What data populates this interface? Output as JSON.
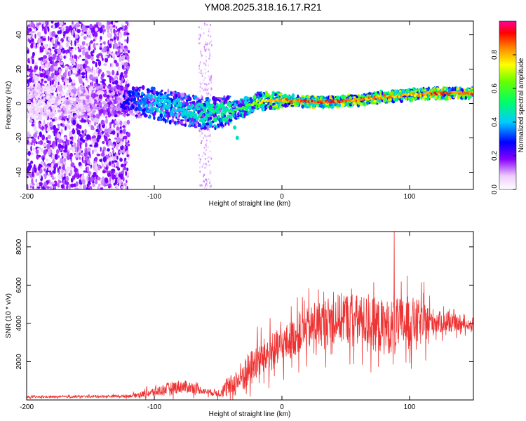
{
  "title": "YM08.2025.318.16.17.R21",
  "chart_data": [
    {
      "type": "heatmap",
      "name": "spectrogram",
      "xlabel": "Height of straight line (km)",
      "ylabel": "Frequency (Hz)",
      "xlim": [
        -200,
        150
      ],
      "ylim": [
        -50,
        48
      ],
      "x_ticks": [
        -200,
        -100,
        0,
        100
      ],
      "y_ticks": [
        -40,
        -20,
        0,
        20,
        40
      ],
      "colorbar": {
        "label": "Normalized spectral amplitude",
        "range": [
          0.0,
          1.0
        ],
        "ticks": [
          "0.0",
          "0.2",
          "0.4",
          "0.6",
          "0.8"
        ]
      },
      "ridge": {
        "description_values": "dominant frequency (Hz) vs height (km)",
        "x": [
          -200,
          -160,
          -120,
          -100,
          -80,
          -60,
          -45,
          -35,
          -20,
          0,
          20,
          40,
          60,
          80,
          100,
          120,
          150
        ],
        "y": [
          1,
          1,
          2,
          0,
          -3,
          -6,
          -5,
          -4,
          1,
          2,
          1,
          1,
          2,
          4,
          5,
          6,
          6
        ],
        "amplitude": [
          0.1,
          0.15,
          0.3,
          0.45,
          0.45,
          0.5,
          0.55,
          0.6,
          0.75,
          0.9,
          0.95,
          0.95,
          0.9,
          0.9,
          0.85,
          0.95,
          0.9
        ]
      },
      "branch": {
        "x": [
          -45,
          -40,
          -37,
          -35
        ],
        "y": [
          -3,
          -8,
          -14,
          -20
        ]
      }
    },
    {
      "type": "line",
      "name": "snr",
      "xlabel": "Height of straight line (km)",
      "ylabel": "SNR (10 * v/v)",
      "xlim": [
        -200,
        150
      ],
      "ylim": [
        0,
        8800
      ],
      "x_ticks": [
        -200,
        -100,
        0,
        100
      ],
      "y_ticks": [
        2000,
        4000,
        6000,
        8000
      ],
      "color": "#ee3333",
      "envelope": {
        "x": [
          -200,
          -150,
          -120,
          -110,
          -100,
          -90,
          -80,
          -70,
          -60,
          -50,
          -40,
          -30,
          -25,
          -20,
          -10,
          0,
          10,
          20,
          30,
          40,
          50,
          60,
          70,
          80,
          90,
          100,
          110,
          120,
          130,
          140,
          150
        ],
        "base": [
          150,
          180,
          200,
          300,
          400,
          600,
          700,
          650,
          450,
          350,
          700,
          1300,
          1600,
          2000,
          2400,
          2800,
          3300,
          3700,
          4000,
          4200,
          4300,
          4200,
          4000,
          3800,
          3900,
          4100,
          4000,
          4100,
          4000,
          3950,
          3900
        ],
        "spread": [
          100,
          120,
          150,
          300,
          500,
          600,
          700,
          600,
          300,
          400,
          1200,
          1800,
          1900,
          1900,
          2000,
          2000,
          2000,
          2200,
          2400,
          2600,
          2700,
          2600,
          2800,
          2900,
          2800,
          2700,
          2300,
          1300,
          900,
          700,
          400
        ]
      },
      "peak": {
        "x": 88,
        "y": 8800
      }
    }
  ]
}
